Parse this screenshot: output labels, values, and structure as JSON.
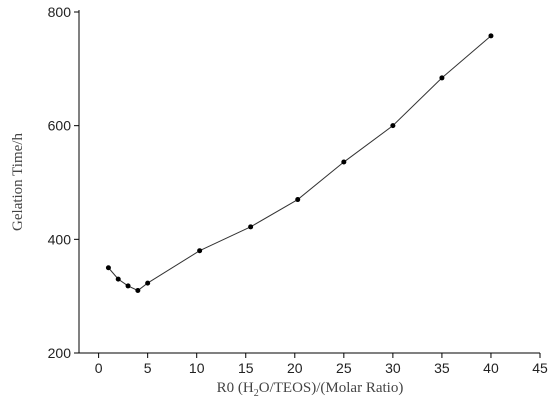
{
  "chart_data": {
    "type": "line",
    "ylabel": "Gelation Time/h",
    "xlabel_parts": [
      "R0 (H",
      "2",
      "O/TEOS)/(Molar Ratio)"
    ],
    "x": [
      1,
      2,
      3,
      4,
      5,
      10.3,
      15.5,
      20.3,
      25,
      30,
      35,
      40
    ],
    "series": [
      {
        "color": "#333333",
        "values": [
          350,
          330,
          318,
          310,
          323,
          380,
          422,
          470,
          536,
          600,
          684,
          758
        ]
      }
    ],
    "xlim": [
      -2,
      45
    ],
    "xticks": [
      0,
      5,
      10,
      15,
      20,
      25,
      30,
      35,
      40,
      45
    ],
    "ylim": [
      200,
      800
    ],
    "yticks": [
      200,
      400,
      600,
      800
    ]
  }
}
